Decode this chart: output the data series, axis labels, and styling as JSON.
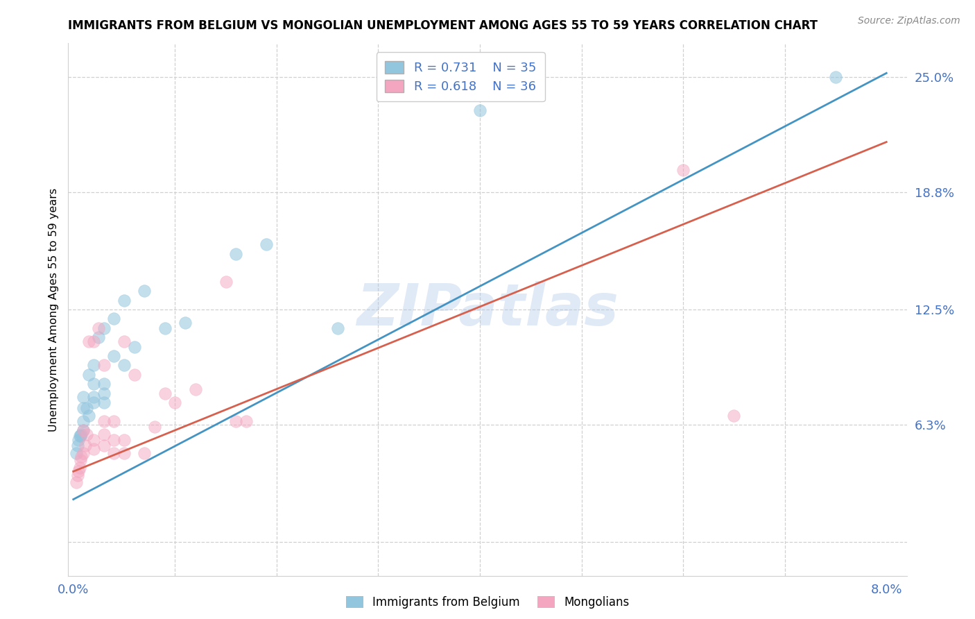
{
  "title": "IMMIGRANTS FROM BELGIUM VS MONGOLIAN UNEMPLOYMENT AMONG AGES 55 TO 59 YEARS CORRELATION CHART",
  "source": "Source: ZipAtlas.com",
  "ylabel": "Unemployment Among Ages 55 to 59 years",
  "xlim": [
    -0.0005,
    0.082
  ],
  "ylim": [
    -0.018,
    0.268
  ],
  "x_ticks": [
    0.0,
    0.01,
    0.02,
    0.03,
    0.04,
    0.05,
    0.06,
    0.07,
    0.08
  ],
  "x_tick_labels": [
    "0.0%",
    "",
    "",
    "",
    "",
    "",
    "",
    "",
    "8.0%"
  ],
  "y_tick_vals": [
    0.0,
    0.063,
    0.125,
    0.188,
    0.25
  ],
  "y_tick_labels": [
    "",
    "6.3%",
    "12.5%",
    "18.8%",
    "25.0%"
  ],
  "blue_label": "Immigrants from Belgium",
  "pink_label": "Mongolians",
  "blue_R": 0.731,
  "blue_N": 35,
  "pink_R": 0.618,
  "pink_N": 36,
  "blue_color": "#92c5de",
  "pink_color": "#f4a6c0",
  "blue_line_color": "#4393c3",
  "pink_line_color": "#d6604d",
  "watermark": "ZIPatlas",
  "blue_line_x0": 0.0,
  "blue_line_y0": 0.023,
  "blue_line_x1": 0.08,
  "blue_line_y1": 0.252,
  "pink_line_x0": 0.0,
  "pink_line_y0": 0.038,
  "pink_line_x1": 0.08,
  "pink_line_y1": 0.215,
  "blue_x": [
    0.0003,
    0.0004,
    0.0005,
    0.0006,
    0.0007,
    0.0008,
    0.001,
    0.001,
    0.001,
    0.001,
    0.0013,
    0.0015,
    0.0015,
    0.002,
    0.002,
    0.002,
    0.002,
    0.0025,
    0.003,
    0.003,
    0.003,
    0.003,
    0.004,
    0.004,
    0.005,
    0.005,
    0.006,
    0.007,
    0.009,
    0.011,
    0.016,
    0.019,
    0.026,
    0.04,
    0.075
  ],
  "blue_y": [
    0.048,
    0.052,
    0.055,
    0.057,
    0.057,
    0.058,
    0.06,
    0.065,
    0.072,
    0.078,
    0.072,
    0.068,
    0.09,
    0.075,
    0.078,
    0.085,
    0.095,
    0.11,
    0.075,
    0.08,
    0.085,
    0.115,
    0.1,
    0.12,
    0.095,
    0.13,
    0.105,
    0.135,
    0.115,
    0.118,
    0.155,
    0.16,
    0.115,
    0.232,
    0.25
  ],
  "pink_x": [
    0.0003,
    0.0004,
    0.0005,
    0.0006,
    0.0007,
    0.0008,
    0.001,
    0.001,
    0.0012,
    0.0013,
    0.0015,
    0.002,
    0.002,
    0.002,
    0.0025,
    0.003,
    0.003,
    0.003,
    0.003,
    0.004,
    0.004,
    0.004,
    0.005,
    0.005,
    0.005,
    0.006,
    0.007,
    0.008,
    0.009,
    0.01,
    0.012,
    0.015,
    0.016,
    0.017,
    0.06,
    0.065
  ],
  "pink_y": [
    0.032,
    0.036,
    0.038,
    0.04,
    0.044,
    0.046,
    0.048,
    0.06,
    0.052,
    0.058,
    0.108,
    0.05,
    0.055,
    0.108,
    0.115,
    0.052,
    0.058,
    0.065,
    0.095,
    0.048,
    0.055,
    0.065,
    0.048,
    0.055,
    0.108,
    0.09,
    0.048,
    0.062,
    0.08,
    0.075,
    0.082,
    0.14,
    0.065,
    0.065,
    0.2,
    0.068
  ]
}
